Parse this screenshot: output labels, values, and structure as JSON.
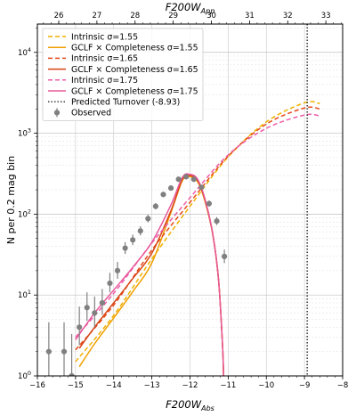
{
  "chart_data": {
    "type": "line",
    "xlabel_bottom": "F200W",
    "xlabel_bottom_sub": "Abs",
    "xlabel_top": "F200W",
    "xlabel_top_sub": "App",
    "ylabel": "N per 0.2 mag bin",
    "xlim": [
      -16,
      -8
    ],
    "ylim_log10": [
      0,
      4.35
    ],
    "yscale": "log",
    "grid": true,
    "legend_position": "top-left",
    "x_ticks": [
      -16,
      -15,
      -14,
      -13,
      -12,
      -11,
      -10,
      -9,
      -8
    ],
    "x_tick_labels": [
      "−16",
      "−15",
      "−14",
      "−13",
      "−12",
      "−11",
      "−10",
      "−9",
      "−8"
    ],
    "top_ticks_abs": [
      -15.44,
      -14.44,
      -13.44,
      -12.44,
      -11.44,
      -10.44,
      -9.44,
      -8.44
    ],
    "top_tick_labels": [
      "26",
      "27",
      "28",
      "29",
      "30",
      "31",
      "32",
      "33"
    ],
    "y_ticks": [
      0,
      1,
      2,
      3,
      4
    ],
    "y_tick_labels": [
      {
        "base": "10",
        "exp": "0"
      },
      {
        "base": "10",
        "exp": "1"
      },
      {
        "base": "10",
        "exp": "2"
      },
      {
        "base": "10",
        "exp": "3"
      },
      {
        "base": "10",
        "exp": "4"
      }
    ],
    "turnover": -8.93,
    "series": [
      {
        "name": "Intrinsic σ=1.55",
        "color": "#f0b000",
        "dash": true,
        "x": [
          -15.0,
          -14.0,
          -13.0,
          -12.0,
          -11.0,
          -10.0,
          -9.0,
          -8.6
        ],
        "y": [
          1.5,
          5.6,
          28,
          125,
          510,
          1380,
          2380,
          2330
        ]
      },
      {
        "name": "GCLF × Completeness σ=1.55",
        "color": "#f0a000",
        "dash": false,
        "x": [
          -14.9,
          -14.5,
          -14.0,
          -13.5,
          -13.0,
          -12.5,
          -12.2,
          -12.0,
          -11.8,
          -11.6,
          -11.4,
          -11.25,
          -11.15,
          -11.12
        ],
        "y": [
          1.3,
          2.5,
          5.2,
          11,
          25,
          105,
          260,
          290,
          250,
          140,
          55,
          15,
          2.5,
          1.0
        ]
      },
      {
        "name": "Intrinsic σ=1.65",
        "color": "#e64a19",
        "dash": true,
        "x": [
          -15.0,
          -14.0,
          -13.0,
          -12.0,
          -11.0,
          -10.0,
          -9.0,
          -8.6
        ],
        "y": [
          2.1,
          7.5,
          36,
          140,
          520,
          1300,
          2050,
          2000
        ]
      },
      {
        "name": "GCLF × Completeness σ=1.65",
        "color": "#d84315",
        "dash": false,
        "x": [
          -14.9,
          -14.5,
          -14.0,
          -13.5,
          -13.0,
          -12.5,
          -12.2,
          -12.0,
          -11.8,
          -11.6,
          -11.4,
          -11.25,
          -11.15,
          -11.12
        ],
        "y": [
          2.2,
          4.0,
          8.0,
          16,
          33,
          110,
          270,
          300,
          260,
          145,
          55,
          15,
          2.5,
          1.0
        ]
      },
      {
        "name": "Intrinsic σ=1.75",
        "color": "#ee5ca8",
        "dash": true,
        "x": [
          -15.0,
          -14.0,
          -13.0,
          -12.0,
          -11.0,
          -10.0,
          -9.0,
          -8.6
        ],
        "y": [
          3.0,
          10.5,
          44,
          160,
          540,
          1150,
          1680,
          1640
        ]
      },
      {
        "name": "GCLF × Completeness σ=1.75",
        "color": "#e8589a",
        "dash": false,
        "x": [
          -15.0,
          -14.5,
          -14.0,
          -13.5,
          -13.0,
          -12.5,
          -12.2,
          -12.0,
          -11.8,
          -11.6,
          -11.4,
          -11.25,
          -11.15,
          -11.12
        ],
        "y": [
          2.8,
          6.0,
          11.5,
          22,
          45,
          130,
          285,
          310,
          270,
          150,
          56,
          15,
          2.5,
          1.0
        ]
      }
    ],
    "turnover_series": {
      "name": "Predicted Turnover (-8.93)",
      "color": "#000000"
    },
    "observed": {
      "name": "Observed",
      "color": "#808080",
      "x": [
        -15.7,
        -15.3,
        -15.1,
        -14.9,
        -14.7,
        -14.5,
        -14.3,
        -14.1,
        -13.9,
        -13.7,
        -13.5,
        -13.3,
        -13.1,
        -12.9,
        -12.7,
        -12.5,
        -12.3,
        -12.1,
        -11.9,
        -11.7,
        -11.5,
        -11.3,
        -11.1
      ],
      "y": [
        2,
        2,
        1,
        4,
        7,
        6,
        8,
        14,
        20,
        38,
        48,
        62,
        88,
        125,
        175,
        210,
        270,
        290,
        270,
        215,
        135,
        82,
        30
      ],
      "yerr_low": [
        1.35,
        1.35,
        0.85,
        1.6,
        2.2,
        2.0,
        2.3,
        3.2,
        4.1,
        5.8,
        6.5,
        7.4,
        8.9,
        10.6,
        12.6,
        13.8,
        15.5,
        16.1,
        15.5,
        13.9,
        11.1,
        8.7,
        5.2
      ],
      "yerr_high": [
        2.6,
        2.6,
        2.3,
        3.2,
        3.8,
        3.6,
        3.9,
        4.8,
        5.6,
        7.1,
        7.9,
        8.7,
        10.1,
        11.9,
        14.0,
        15.2,
        16.9,
        17.5,
        16.9,
        15.2,
        12.4,
        9.9,
        6.5
      ]
    }
  }
}
